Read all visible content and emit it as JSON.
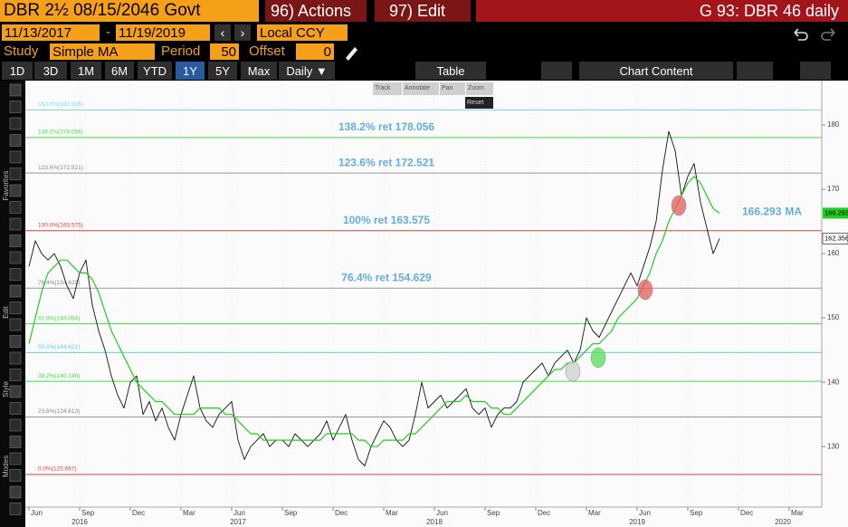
{
  "header": {
    "security": "DBR 2½ 08/15/2046 Govt",
    "actions": "96) Actions",
    "edit": "97) Edit",
    "function": "G 93: DBR 46 daily"
  },
  "range": {
    "start": "11/13/2017",
    "dash": "-",
    "end": "11/19/2019",
    "currency": "Local CCY"
  },
  "study": {
    "study_label": "Study",
    "study": "Simple MA",
    "period_label": "Period",
    "period": "50",
    "offset_label": "Offset",
    "offset": "0"
  },
  "periods": [
    "1D",
    "3D",
    "1M",
    "6M",
    "YTD",
    "1Y",
    "5Y",
    "Max"
  ],
  "frequency": "Daily ▼",
  "table": "Table",
  "chart_content": "Chart Content",
  "chart_tools": [
    "Track",
    "Annotate",
    "Pan",
    "Zoom",
    "Reset"
  ],
  "side_labels": [
    "Favorites",
    "Edit",
    "Style",
    "Modes"
  ],
  "chart_data": {
    "type": "line",
    "categories": [
      "Jun",
      null,
      null,
      null,
      null,
      null,
      null,
      null,
      "Sep",
      null,
      null,
      null,
      null,
      null,
      null,
      null,
      "Dec",
      null,
      null,
      null,
      null,
      null,
      null,
      null,
      "Mar",
      null,
      null,
      null,
      null,
      null,
      null,
      null,
      "Jun",
      null,
      null,
      null,
      null,
      null,
      null,
      null,
      "Sep",
      null,
      null,
      null,
      null,
      null,
      null,
      null,
      "Dec",
      null,
      null,
      null,
      null,
      null,
      null,
      null,
      "Mar",
      null,
      null,
      null,
      null,
      null,
      null,
      null,
      "Jun",
      null,
      null,
      null,
      null,
      null,
      null,
      null,
      "Sep",
      null,
      null,
      null,
      null,
      null,
      null,
      null,
      "Dec",
      null,
      null,
      null,
      null,
      null,
      null,
      null,
      "Mar",
      null,
      null,
      null,
      null,
      null,
      null,
      null,
      "Jun",
      null,
      null,
      null,
      null,
      null,
      null,
      null,
      "Sep",
      null,
      null,
      null,
      null,
      null,
      null,
      null,
      "Dec",
      null,
      null,
      null,
      null,
      null,
      null,
      null,
      "Mar",
      null,
      null,
      null,
      null
    ],
    "years": [
      null,
      null,
      null,
      null,
      null,
      null,
      null,
      null,
      "2016",
      null,
      null,
      null,
      null,
      null,
      null,
      null,
      null,
      null,
      null,
      null,
      null,
      null,
      null,
      null,
      null,
      null,
      null,
      null,
      null,
      null,
      null,
      null,
      null,
      "2017",
      null,
      null,
      null,
      null,
      null,
      null,
      null,
      null,
      null,
      null,
      null,
      null,
      null,
      null,
      null,
      null,
      null,
      null,
      null,
      null,
      null,
      null,
      null,
      null,
      null,
      null,
      null,
      null,
      null,
      null,
      "2018",
      null,
      null,
      null,
      null,
      null,
      null,
      null,
      null,
      null,
      null,
      null,
      null,
      null,
      null,
      null,
      null,
      null,
      null,
      null,
      null,
      null,
      null,
      null,
      null,
      null,
      null,
      null,
      null,
      null,
      null,
      null,
      "2019",
      null,
      null,
      null,
      null,
      null,
      null,
      null,
      null,
      null,
      null,
      null,
      null,
      null,
      null,
      null,
      null,
      null,
      null,
      null,
      null,
      null,
      null,
      "2020",
      null,
      null,
      null,
      null,
      null
    ],
    "series": [
      {
        "name": "DBR 46",
        "color": "#111111",
        "values": [
          158,
          162,
          160,
          159,
          160,
          158,
          155,
          153,
          157,
          159,
          152,
          148,
          145,
          141,
          138,
          136,
          140,
          141,
          135,
          137,
          134,
          136,
          133,
          131,
          135,
          138,
          141,
          136,
          134,
          133,
          135,
          136,
          137,
          131,
          128,
          130,
          131,
          132,
          130,
          131,
          131,
          130,
          132,
          131,
          130,
          131,
          132,
          134,
          131,
          133,
          135,
          131,
          128,
          127,
          130,
          132,
          134,
          133,
          131,
          130,
          131,
          135,
          140,
          136,
          137,
          138,
          136,
          137,
          138,
          139,
          136,
          135,
          136,
          133,
          135,
          136,
          136,
          137,
          140,
          141,
          142,
          143,
          141,
          143,
          144,
          145,
          143,
          145,
          150,
          148,
          147,
          149,
          151,
          153,
          155,
          157,
          155,
          158,
          161,
          165,
          173,
          179,
          176,
          169,
          172,
          174,
          168,
          164,
          160,
          162.356,
          null,
          null,
          null,
          null,
          null,
          null,
          null,
          null,
          null,
          null,
          null,
          null,
          null,
          null,
          null
        ]
      },
      {
        "name": "MA",
        "color": "#22cc22",
        "values": [
          146,
          150,
          154,
          157,
          158,
          159,
          159,
          158,
          157,
          157,
          156,
          154,
          151,
          148,
          146,
          144,
          142,
          140,
          139,
          138,
          137,
          137,
          136,
          135,
          135,
          135,
          135,
          136,
          136,
          136,
          136,
          135,
          135,
          134,
          133,
          132,
          132,
          131,
          131,
          131,
          131,
          131,
          131,
          131,
          131,
          131,
          131,
          132,
          132,
          132,
          132,
          132,
          131,
          131,
          130,
          130,
          131,
          131,
          131,
          131,
          132,
          132,
          133,
          134,
          135,
          136,
          137,
          137,
          137,
          138,
          137,
          137,
          137,
          136,
          136,
          135,
          135,
          136,
          137,
          138,
          139,
          140,
          141,
          142,
          142,
          143,
          143,
          144,
          145,
          146,
          146,
          147,
          148,
          150,
          151,
          152,
          153,
          155,
          157,
          160,
          162,
          165,
          167,
          169,
          171,
          172,
          171,
          169,
          167,
          166.293,
          null,
          null,
          null,
          null,
          null,
          null,
          null,
          null,
          null,
          null,
          null,
          null,
          null,
          null,
          null
        ]
      }
    ],
    "levels": [
      {
        "label": "150.0%(182.326)",
        "value": 182.326,
        "color": "#7fd8e8"
      },
      {
        "label": "138.2%(178.056)",
        "value": 178.056,
        "color": "#44dd44",
        "callout": "138.2% ret 178.056"
      },
      {
        "label": "123.6%(172.521)",
        "value": 172.521,
        "color": "#999999",
        "callout": "123.6% ret 172.521"
      },
      {
        "label": "100.0%(163.575)",
        "value": 163.575,
        "color": "#d94444",
        "callout": "100% ret 163.575"
      },
      {
        "label": "76.4%(154.629)",
        "value": 154.629,
        "color": "#999999",
        "callout": "76.4% ret 154.629"
      },
      {
        "label": "61.8%(149.094)",
        "value": 149.094,
        "color": "#44dd44"
      },
      {
        "label": "50.0%(144.621)",
        "value": 144.621,
        "color": "#5fd0e0"
      },
      {
        "label": "38.2%(140.148)",
        "value": 140.148,
        "color": "#44dd44"
      },
      {
        "label": "23.6%(134.613)",
        "value": 134.613,
        "color": "#999999"
      },
      {
        "label": "0.0%(125.667)",
        "value": 125.667,
        "color": "#d94444"
      }
    ],
    "ylim": [
      120.6,
      186.9
    ],
    "yticks": [
      130,
      140,
      150,
      160,
      170,
      180
    ]
  }
}
